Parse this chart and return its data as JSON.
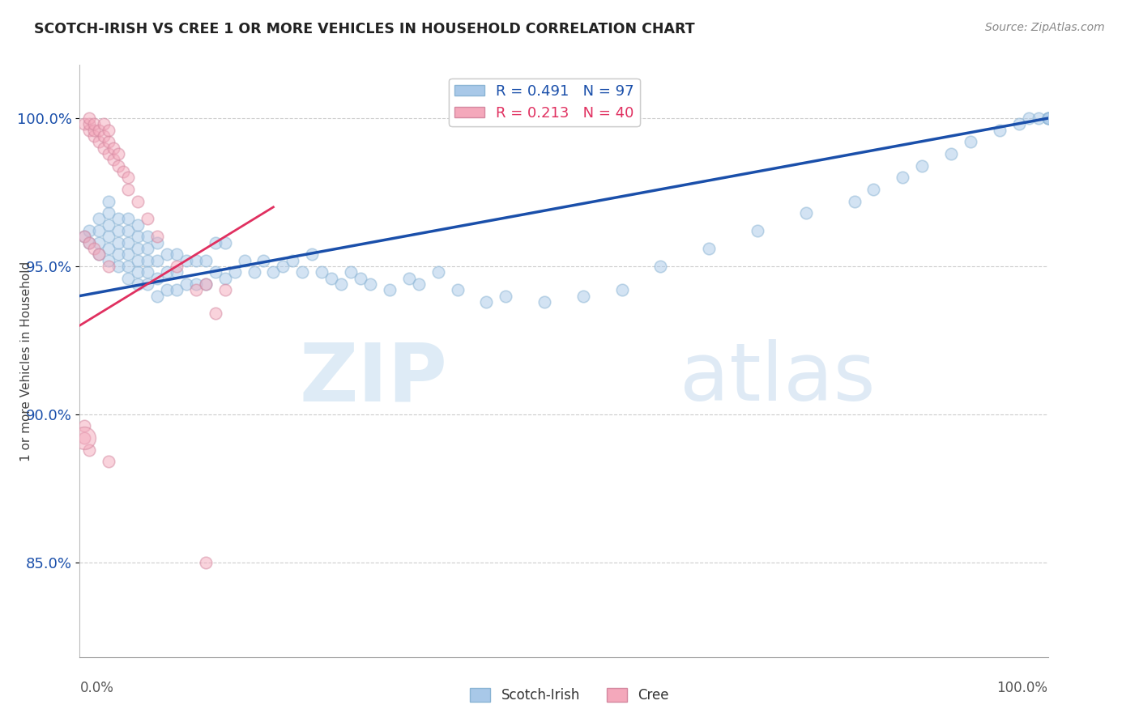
{
  "title": "SCOTCH-IRISH VS CREE 1 OR MORE VEHICLES IN HOUSEHOLD CORRELATION CHART",
  "source": "Source: ZipAtlas.com",
  "ylabel": "1 or more Vehicles in Household",
  "ytick_labels": [
    "85.0%",
    "90.0%",
    "95.0%",
    "100.0%"
  ],
  "ytick_values": [
    0.85,
    0.9,
    0.95,
    1.0
  ],
  "xmin": 0.0,
  "xmax": 1.0,
  "ymin": 0.818,
  "ymax": 1.018,
  "legend_blue_label": "R = 0.491   N = 97",
  "legend_pink_label": "R = 0.213   N = 40",
  "legend_bottom_blue": "Scotch-Irish",
  "legend_bottom_pink": "Cree",
  "blue_color": "#a8c8e8",
  "pink_color": "#f4a8bb",
  "blue_line_color": "#1a4faa",
  "pink_line_color": "#e03060",
  "watermark_zip": "ZIP",
  "watermark_atlas": "atlas",
  "blue_x": [
    0.005,
    0.01,
    0.01,
    0.02,
    0.02,
    0.02,
    0.02,
    0.03,
    0.03,
    0.03,
    0.03,
    0.03,
    0.03,
    0.04,
    0.04,
    0.04,
    0.04,
    0.04,
    0.05,
    0.05,
    0.05,
    0.05,
    0.05,
    0.05,
    0.06,
    0.06,
    0.06,
    0.06,
    0.06,
    0.06,
    0.07,
    0.07,
    0.07,
    0.07,
    0.07,
    0.08,
    0.08,
    0.08,
    0.08,
    0.09,
    0.09,
    0.09,
    0.1,
    0.1,
    0.1,
    0.11,
    0.11,
    0.12,
    0.12,
    0.13,
    0.13,
    0.14,
    0.14,
    0.15,
    0.15,
    0.16,
    0.17,
    0.18,
    0.19,
    0.2,
    0.21,
    0.22,
    0.23,
    0.24,
    0.25,
    0.26,
    0.27,
    0.28,
    0.29,
    0.3,
    0.32,
    0.34,
    0.35,
    0.37,
    0.39,
    0.42,
    0.44,
    0.48,
    0.52,
    0.56,
    0.6,
    0.65,
    0.7,
    0.75,
    0.8,
    0.82,
    0.85,
    0.87,
    0.9,
    0.92,
    0.95,
    0.97,
    0.98,
    0.99,
    1.0,
    1.0,
    1.0
  ],
  "blue_y": [
    0.96,
    0.958,
    0.962,
    0.954,
    0.958,
    0.962,
    0.966,
    0.952,
    0.956,
    0.96,
    0.964,
    0.968,
    0.972,
    0.95,
    0.954,
    0.958,
    0.962,
    0.966,
    0.946,
    0.95,
    0.954,
    0.958,
    0.962,
    0.966,
    0.944,
    0.948,
    0.952,
    0.956,
    0.96,
    0.964,
    0.944,
    0.948,
    0.952,
    0.956,
    0.96,
    0.94,
    0.946,
    0.952,
    0.958,
    0.942,
    0.948,
    0.954,
    0.942,
    0.948,
    0.954,
    0.944,
    0.952,
    0.944,
    0.952,
    0.944,
    0.952,
    0.948,
    0.958,
    0.946,
    0.958,
    0.948,
    0.952,
    0.948,
    0.952,
    0.948,
    0.95,
    0.952,
    0.948,
    0.954,
    0.948,
    0.946,
    0.944,
    0.948,
    0.946,
    0.944,
    0.942,
    0.946,
    0.944,
    0.948,
    0.942,
    0.938,
    0.94,
    0.938,
    0.94,
    0.942,
    0.95,
    0.956,
    0.962,
    0.968,
    0.972,
    0.976,
    0.98,
    0.984,
    0.988,
    0.992,
    0.996,
    0.998,
    1.0,
    1.0,
    1.0,
    1.0,
    1.0
  ],
  "pink_x": [
    0.005,
    0.01,
    0.01,
    0.01,
    0.015,
    0.015,
    0.015,
    0.02,
    0.02,
    0.025,
    0.025,
    0.025,
    0.03,
    0.03,
    0.03,
    0.035,
    0.035,
    0.04,
    0.04,
    0.045,
    0.05,
    0.05,
    0.06,
    0.07,
    0.08,
    0.1,
    0.12,
    0.14,
    0.005,
    0.01,
    0.015,
    0.02,
    0.03,
    0.13,
    0.15,
    0.005,
    0.005,
    0.01,
    0.03,
    0.13
  ],
  "pink_y": [
    0.998,
    0.996,
    0.998,
    1.0,
    0.994,
    0.996,
    0.998,
    0.992,
    0.996,
    0.99,
    0.994,
    0.998,
    0.988,
    0.992,
    0.996,
    0.986,
    0.99,
    0.984,
    0.988,
    0.982,
    0.976,
    0.98,
    0.972,
    0.966,
    0.96,
    0.95,
    0.942,
    0.934,
    0.96,
    0.958,
    0.956,
    0.954,
    0.95,
    0.944,
    0.942,
    0.892,
    0.896,
    0.888,
    0.884,
    0.85
  ],
  "pink_big_x": [
    0.005
  ],
  "pink_big_y": [
    0.892
  ],
  "blue_size": 110,
  "pink_size": 110,
  "pink_big_size": 400,
  "blue_alpha": 0.5,
  "pink_alpha": 0.5,
  "blue_line_start_x": 0.0,
  "blue_line_start_y": 0.94,
  "blue_line_end_x": 1.0,
  "blue_line_end_y": 1.0,
  "pink_line_start_x": 0.0,
  "pink_line_start_y": 0.93,
  "pink_line_end_x": 0.2,
  "pink_line_end_y": 0.97
}
